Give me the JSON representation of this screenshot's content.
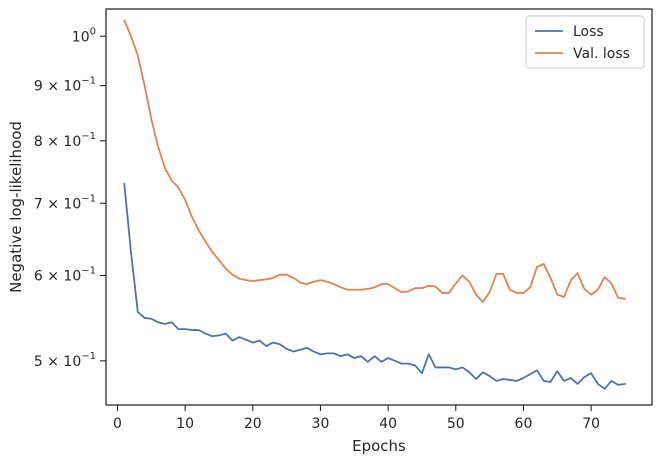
{
  "chart_data": {
    "type": "line",
    "xlabel": "Epochs",
    "ylabel": "Negative log-likelihood",
    "yscale": "log",
    "xlim": [
      -1.7,
      79
    ],
    "ylim": [
      0.455,
      1.06
    ],
    "grid": false,
    "legend_position": "top-right",
    "x_ticks": [
      0,
      10,
      20,
      30,
      40,
      50,
      60,
      70
    ],
    "x_tick_labels": [
      "0",
      "10",
      "20",
      "30",
      "40",
      "50",
      "60",
      "70"
    ],
    "y_ticks": [
      0.5,
      0.6,
      0.7,
      0.8,
      0.9,
      1.0
    ],
    "y_tick_labels": [
      {
        "base": "5 × 10",
        "exp": "−1"
      },
      {
        "base": "6 × 10",
        "exp": "−1"
      },
      {
        "base": "7 × 10",
        "exp": "−1"
      },
      {
        "base": "8 × 10",
        "exp": "−1"
      },
      {
        "base": "9 × 10",
        "exp": "−1"
      },
      {
        "base": "10",
        "exp": "0"
      }
    ],
    "x": [
      1,
      2,
      3,
      4,
      5,
      6,
      7,
      8,
      9,
      10,
      11,
      12,
      13,
      14,
      15,
      16,
      17,
      18,
      19,
      20,
      21,
      22,
      23,
      24,
      25,
      26,
      27,
      28,
      29,
      30,
      31,
      32,
      33,
      34,
      35,
      36,
      37,
      38,
      39,
      40,
      41,
      42,
      43,
      44,
      45,
      46,
      47,
      48,
      49,
      50,
      51,
      52,
      53,
      54,
      55,
      56,
      57,
      58,
      59,
      60,
      61,
      62,
      63,
      64,
      65,
      66,
      67,
      68,
      69,
      70,
      71,
      72,
      73,
      74,
      75
    ],
    "series": [
      {
        "name": "Loss",
        "color": "#4c72b0",
        "values": [
          0.73,
          0.63,
          0.555,
          0.548,
          0.547,
          0.543,
          0.541,
          0.543,
          0.535,
          0.535,
          0.534,
          0.534,
          0.53,
          0.527,
          0.528,
          0.53,
          0.522,
          0.526,
          0.523,
          0.52,
          0.522,
          0.516,
          0.52,
          0.518,
          0.513,
          0.51,
          0.512,
          0.514,
          0.51,
          0.507,
          0.508,
          0.508,
          0.505,
          0.507,
          0.503,
          0.505,
          0.499,
          0.505,
          0.499,
          0.503,
          0.5,
          0.497,
          0.497,
          0.495,
          0.487,
          0.507,
          0.493,
          0.493,
          0.493,
          0.491,
          0.493,
          0.488,
          0.481,
          0.488,
          0.484,
          0.479,
          0.481,
          0.48,
          0.479,
          0.482,
          0.486,
          0.49,
          0.479,
          0.478,
          0.489,
          0.479,
          0.482,
          0.476,
          0.483,
          0.487,
          0.476,
          0.471,
          0.479,
          0.475,
          0.476
        ]
      },
      {
        "name": "Val. loss",
        "color": "#dd8452",
        "values": [
          1.035,
          1.0,
          0.96,
          0.9,
          0.838,
          0.79,
          0.755,
          0.735,
          0.724,
          0.705,
          0.68,
          0.661,
          0.645,
          0.631,
          0.62,
          0.609,
          0.601,
          0.596,
          0.594,
          0.593,
          0.594,
          0.595,
          0.597,
          0.601,
          0.601,
          0.597,
          0.591,
          0.589,
          0.592,
          0.594,
          0.592,
          0.589,
          0.585,
          0.582,
          0.582,
          0.582,
          0.583,
          0.585,
          0.589,
          0.589,
          0.584,
          0.579,
          0.58,
          0.584,
          0.584,
          0.587,
          0.586,
          0.578,
          0.578,
          0.59,
          0.6,
          0.592,
          0.576,
          0.567,
          0.579,
          0.602,
          0.602,
          0.582,
          0.578,
          0.578,
          0.585,
          0.611,
          0.615,
          0.597,
          0.576,
          0.573,
          0.594,
          0.603,
          0.583,
          0.576,
          0.582,
          0.598,
          0.59,
          0.572,
          0.571
        ]
      }
    ]
  }
}
